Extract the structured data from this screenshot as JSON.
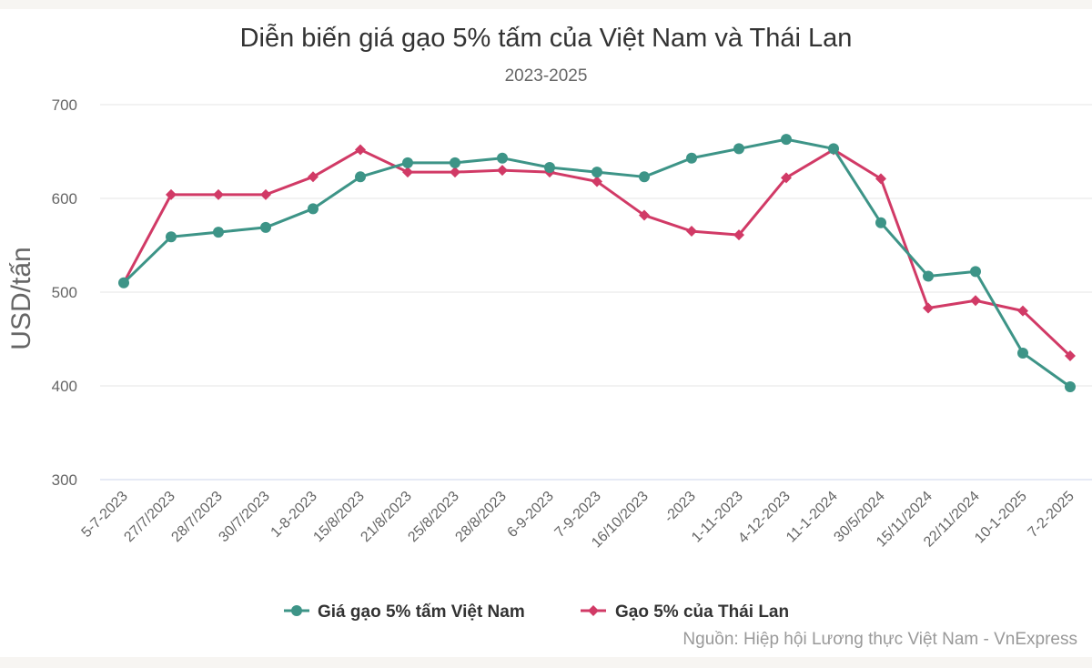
{
  "chart_data": {
    "type": "line",
    "title": "Diễn biến giá gạo 5% tấm của Việt Nam và Thái Lan",
    "subtitle": "2023-2025",
    "ylabel": "USD/tấn",
    "xlabel": "",
    "ylim": [
      300,
      700
    ],
    "yticks": [
      300,
      400,
      500,
      600,
      700
    ],
    "grid": true,
    "legend": "bottom",
    "categories": [
      "5-7-2023",
      "27/7/2023",
      "28/7/2023",
      "30/7/2023",
      "1-8-2023",
      "15/8/2023",
      "21/8/2023",
      "25/8/2023",
      "28/8/2023",
      "6-9-2023",
      "7-9-2023",
      "16/10/2023",
      "-2023",
      "1-11-2023",
      "4-12-2023",
      "11-1-2024",
      "30/5/2024",
      "15/11/2024",
      "22/11/2024",
      "10-1-2025",
      "7-2-2025"
    ],
    "series": [
      {
        "name": "Giá gạo 5% tấm Việt Nam",
        "color": "#3d9487",
        "marker": "circle",
        "values": [
          510,
          559,
          564,
          569,
          589,
          623,
          638,
          638,
          643,
          633,
          628,
          623,
          643,
          653,
          663,
          653,
          574,
          517,
          522,
          435,
          399
        ]
      },
      {
        "name": "Gạo 5% của Thái Lan",
        "color": "#d13a66",
        "marker": "diamond",
        "values": [
          510,
          604,
          604,
          604,
          623,
          652,
          628,
          628,
          630,
          628,
          618,
          582,
          565,
          561,
          622,
          652,
          621,
          483,
          491,
          480,
          432
        ]
      }
    ],
    "source": "Nguồn: Hiệp hội Lương thực Việt Nam - VnExpress"
  }
}
